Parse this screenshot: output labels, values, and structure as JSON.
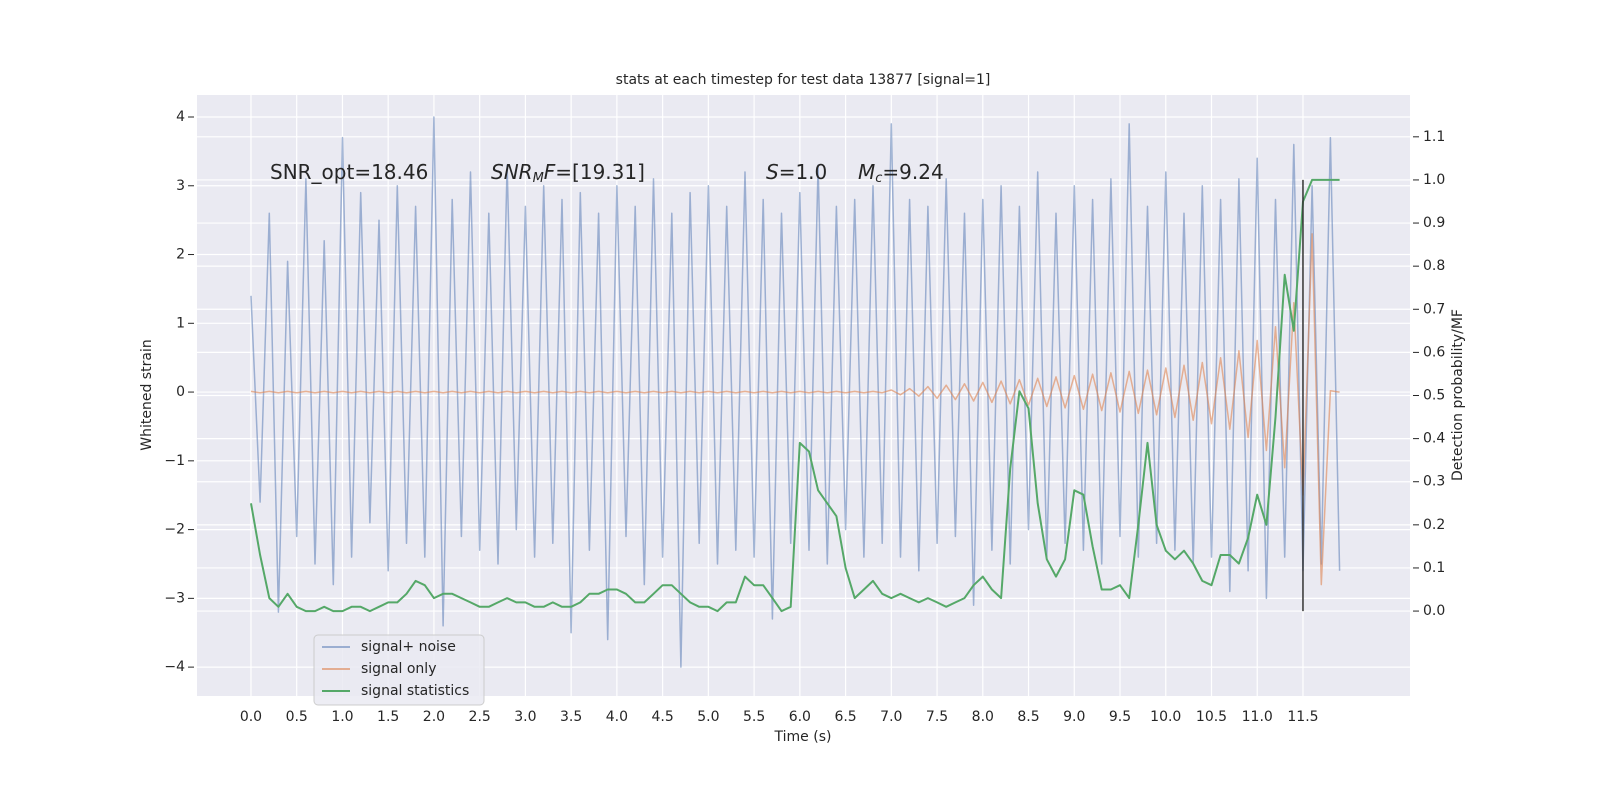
{
  "chart_data": {
    "type": "line",
    "title": "stats at each timestep for test data 13877 [signal=1]",
    "xlabel": "Time (s)",
    "ylabel": "Whitened strain",
    "y2label": "Detection probability/MF",
    "background": "#eaeaf2",
    "grid": true,
    "legend": "lower left",
    "xlim": [
      -0.59,
      12.67
    ],
    "ylim": [
      -4.42,
      4.32
    ],
    "y2lim": [
      -0.197,
      1.197
    ],
    "xticks": [
      {
        "value": 0,
        "label": "0.0"
      },
      {
        "value": 0.5,
        "label": "0.5"
      },
      {
        "value": 1,
        "label": "1.0"
      },
      {
        "value": 1.5,
        "label": "1.5"
      },
      {
        "value": 2,
        "label": "2.0"
      },
      {
        "value": 2.5,
        "label": "2.5"
      },
      {
        "value": 3,
        "label": "3.0"
      },
      {
        "value": 3.5,
        "label": "3.5"
      },
      {
        "value": 4,
        "label": "4.0"
      },
      {
        "value": 4.5,
        "label": "4.5"
      },
      {
        "value": 5,
        "label": "5.0"
      },
      {
        "value": 5.5,
        "label": "5.5"
      },
      {
        "value": 6,
        "label": "6.0"
      },
      {
        "value": 6.5,
        "label": "6.5"
      },
      {
        "value": 7,
        "label": "7.0"
      },
      {
        "value": 7.5,
        "label": "7.5"
      },
      {
        "value": 8,
        "label": "8.0"
      },
      {
        "value": 8.5,
        "label": "8.5"
      },
      {
        "value": 9,
        "label": "9.0"
      },
      {
        "value": 9.5,
        "label": "9.5"
      },
      {
        "value": 10,
        "label": "10.0"
      },
      {
        "value": 10.5,
        "label": "10.5"
      },
      {
        "value": 11,
        "label": "11.0"
      },
      {
        "value": 11.5,
        "label": "11.5"
      }
    ],
    "yticks": [
      {
        "value": -4,
        "label": "−4"
      },
      {
        "value": -3,
        "label": "−3"
      },
      {
        "value": -2,
        "label": "−2"
      },
      {
        "value": -1,
        "label": "−1"
      },
      0,
      1,
      2,
      3,
      4
    ],
    "y2ticks": [
      {
        "value": 0,
        "label": "0.0"
      },
      {
        "value": 0.1,
        "label": "0.1"
      },
      {
        "value": 0.2,
        "label": "0.2"
      },
      {
        "value": 0.3,
        "label": "0.3"
      },
      {
        "value": 0.4,
        "label": "0.4"
      },
      {
        "value": 0.5,
        "label": "0.5"
      },
      {
        "value": 0.6,
        "label": "0.6"
      },
      {
        "value": 0.7,
        "label": "0.7"
      },
      {
        "value": 0.8,
        "label": "0.8"
      },
      {
        "value": 0.9,
        "label": "0.9"
      },
      {
        "value": 1,
        "label": "1.0"
      },
      {
        "value": 1.1,
        "label": "1.1"
      }
    ],
    "x": [
      0,
      0.1,
      0.2,
      0.3,
      0.4,
      0.5,
      0.6,
      0.7,
      0.8,
      0.9,
      1,
      1.1,
      1.2,
      1.3,
      1.4,
      1.5,
      1.6,
      1.7,
      1.8,
      1.9,
      2,
      2.1,
      2.2,
      2.3,
      2.4,
      2.5,
      2.6,
      2.7,
      2.8,
      2.9,
      3,
      3.1,
      3.2,
      3.3,
      3.4,
      3.5,
      3.6,
      3.7,
      3.8,
      3.9,
      4,
      4.1,
      4.2,
      4.3,
      4.4,
      4.5,
      4.6,
      4.7,
      4.8,
      4.9,
      5,
      5.1,
      5.2,
      5.3,
      5.4,
      5.5,
      5.6,
      5.7,
      5.8,
      5.9,
      6,
      6.1,
      6.2,
      6.3,
      6.4,
      6.5,
      6.6,
      6.7,
      6.8,
      6.9,
      7,
      7.1,
      7.2,
      7.3,
      7.4,
      7.5,
      7.6,
      7.7,
      7.8,
      7.9,
      8,
      8.1,
      8.2,
      8.3,
      8.4,
      8.5,
      8.6,
      8.7,
      8.8,
      8.9,
      9,
      9.1,
      9.2,
      9.3,
      9.4,
      9.5,
      9.6,
      9.7,
      9.8,
      9.9,
      10,
      10.1,
      10.2,
      10.3,
      10.4,
      10.5,
      10.6,
      10.7,
      10.8,
      10.9,
      11,
      11.1,
      11.2,
      11.3,
      11.4,
      11.5,
      11.6,
      11.7,
      11.8,
      11.9
    ],
    "series": [
      {
        "name": "signal+ noise",
        "color": "#4c72b0",
        "alpha": 0.5,
        "values": [
          1.4,
          -1.6,
          2.6,
          -3.2,
          1.9,
          -2.1,
          3.1,
          -2.5,
          2.2,
          -2.8,
          3.7,
          -2.4,
          2.9,
          -1.9,
          2.5,
          -2.6,
          3.0,
          -2.2,
          2.7,
          -2.4,
          4.0,
          -3.4,
          2.8,
          -2.1,
          3.2,
          -2.3,
          2.6,
          -2.5,
          3.3,
          -2.0,
          2.7,
          -2.4,
          3.0,
          -2.2,
          2.8,
          -3.5,
          2.9,
          -2.3,
          2.6,
          -3.6,
          3.0,
          -2.1,
          2.7,
          -2.8,
          3.1,
          -2.4,
          2.6,
          -4.0,
          2.9,
          -2.2,
          3.0,
          -2.5,
          2.7,
          -2.3,
          3.2,
          -2.4,
          2.8,
          -3.3,
          2.6,
          -2.2,
          2.9,
          -2.3,
          3.3,
          -2.5,
          2.7,
          -2.0,
          2.8,
          -2.4,
          3.0,
          -2.2,
          3.9,
          -2.4,
          2.8,
          -2.6,
          2.7,
          -2.2,
          3.1,
          -2.1,
          2.6,
          -3.1,
          2.8,
          -2.3,
          3.0,
          -2.5,
          2.7,
          -2.0,
          3.2,
          -2.4,
          2.6,
          -2.2,
          3.0,
          -2.3,
          2.8,
          -2.5,
          3.1,
          -2.1,
          3.9,
          -2.4,
          2.7,
          -2.2,
          3.2,
          -2.3,
          2.6,
          -2.5,
          3.0,
          -2.4,
          2.8,
          -2.9,
          3.1,
          -2.6,
          3.4,
          -3.0,
          2.8,
          -2.4,
          3.6,
          -2.6,
          3.0,
          -2.5,
          3.7,
          -2.6
        ]
      },
      {
        "name": "signal only",
        "color": "#dd8452",
        "alpha": 0.6,
        "values": [
          0.01,
          -0.01,
          0.01,
          -0.01,
          0.01,
          -0.01,
          0.01,
          -0.01,
          0.01,
          -0.01,
          0.01,
          -0.01,
          0.01,
          -0.01,
          0.01,
          -0.01,
          0.01,
          -0.01,
          0.01,
          -0.01,
          0.01,
          -0.01,
          0.01,
          -0.01,
          0.01,
          -0.01,
          0.01,
          -0.01,
          0.01,
          -0.01,
          0.01,
          -0.01,
          0.01,
          -0.01,
          0.01,
          -0.01,
          0.01,
          -0.01,
          0.01,
          -0.01,
          0.01,
          -0.01,
          0.01,
          -0.01,
          0.01,
          -0.01,
          0.01,
          -0.01,
          0.01,
          -0.01,
          0.01,
          -0.01,
          0.01,
          -0.01,
          0.01,
          -0.01,
          0.01,
          -0.01,
          0.01,
          -0.01,
          0.01,
          -0.01,
          0.01,
          -0.01,
          0.01,
          -0.01,
          0.01,
          -0.01,
          0.01,
          -0.01,
          0.03,
          -0.04,
          0.05,
          -0.06,
          0.08,
          -0.09,
          0.1,
          -0.11,
          0.12,
          -0.13,
          0.14,
          -0.15,
          0.16,
          -0.17,
          0.18,
          -0.19,
          0.2,
          -0.21,
          0.22,
          -0.23,
          0.24,
          -0.25,
          0.26,
          -0.27,
          0.28,
          -0.29,
          0.3,
          -0.31,
          0.32,
          -0.33,
          0.35,
          -0.37,
          0.39,
          -0.41,
          0.43,
          -0.46,
          0.5,
          -0.54,
          0.6,
          -0.66,
          0.75,
          -0.85,
          0.95,
          -1.1,
          1.3,
          -1.5,
          2.3,
          -2.8,
          0.02,
          0
        ]
      },
      {
        "name": "signal statistics",
        "color": "#55a868",
        "alpha": 1,
        "axis": "y2",
        "values": [
          0.25,
          0.13,
          0.03,
          0.01,
          0.04,
          0.01,
          0,
          0,
          0.01,
          0,
          0,
          0.01,
          0.01,
          0,
          0.01,
          0.02,
          0.02,
          0.04,
          0.07,
          0.06,
          0.03,
          0.04,
          0.04,
          0.03,
          0.02,
          0.01,
          0.01,
          0.02,
          0.03,
          0.02,
          0.02,
          0.01,
          0.01,
          0.02,
          0.01,
          0.01,
          0.02,
          0.04,
          0.04,
          0.05,
          0.05,
          0.04,
          0.02,
          0.02,
          0.04,
          0.06,
          0.06,
          0.04,
          0.02,
          0.01,
          0.01,
          0,
          0.02,
          0.02,
          0.08,
          0.06,
          0.06,
          0.03,
          0,
          0.01,
          0.39,
          0.37,
          0.28,
          0.25,
          0.22,
          0.1,
          0.03,
          0.05,
          0.07,
          0.04,
          0.03,
          0.04,
          0.03,
          0.02,
          0.03,
          0.02,
          0.01,
          0.02,
          0.03,
          0.06,
          0.08,
          0.05,
          0.03,
          0.33,
          0.51,
          0.47,
          0.25,
          0.12,
          0.08,
          0.12,
          0.28,
          0.27,
          0.15,
          0.05,
          0.05,
          0.06,
          0.03,
          0.2,
          0.39,
          0.2,
          0.14,
          0.12,
          0.14,
          0.11,
          0.07,
          0.06,
          0.13,
          0.13,
          0.11,
          0.17,
          0.27,
          0.2,
          0.45,
          0.78,
          0.65,
          0.95,
          1.0,
          1.0,
          1.0,
          1.0
        ]
      }
    ],
    "vline": {
      "x": 11.5,
      "ymin": 0,
      "ymax": 1,
      "axis": "y2",
      "color": "#333333"
    },
    "annotations": [
      {
        "parts": [
          {
            "text": "SNR_opt=18.46"
          }
        ]
      },
      {
        "parts": [
          {
            "text": "SNR",
            "italic": true
          },
          {
            "text": "M",
            "italic": true,
            "sub": true
          },
          {
            "text": "F",
            "italic": true
          },
          {
            "text": "=[19.31]"
          }
        ]
      },
      {
        "parts": [
          {
            "text": "S",
            "italic": true
          },
          {
            "text": "=1.0"
          }
        ]
      },
      {
        "parts": [
          {
            "text": "M",
            "italic": true
          },
          {
            "text": "c",
            "italic": true,
            "sub": true
          },
          {
            "text": "=9.24"
          }
        ]
      }
    ]
  }
}
